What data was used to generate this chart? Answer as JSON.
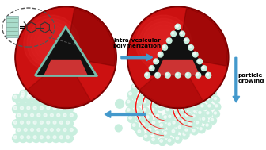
{
  "bg_color": "#ffffff",
  "red_color": "#cc1111",
  "red_dark": "#7a0000",
  "red_mid": "#aa1111",
  "red_highlight": "#ee3333",
  "cyan_bead": "#aaddcc",
  "cyan_bright": "#c8eede",
  "dark_cone": "#111111",
  "teal_line": "#77bbaa",
  "arrow_color": "#4499cc",
  "label1": "intra-vesicular\npolymerization",
  "label2": "particle\ngrowing"
}
